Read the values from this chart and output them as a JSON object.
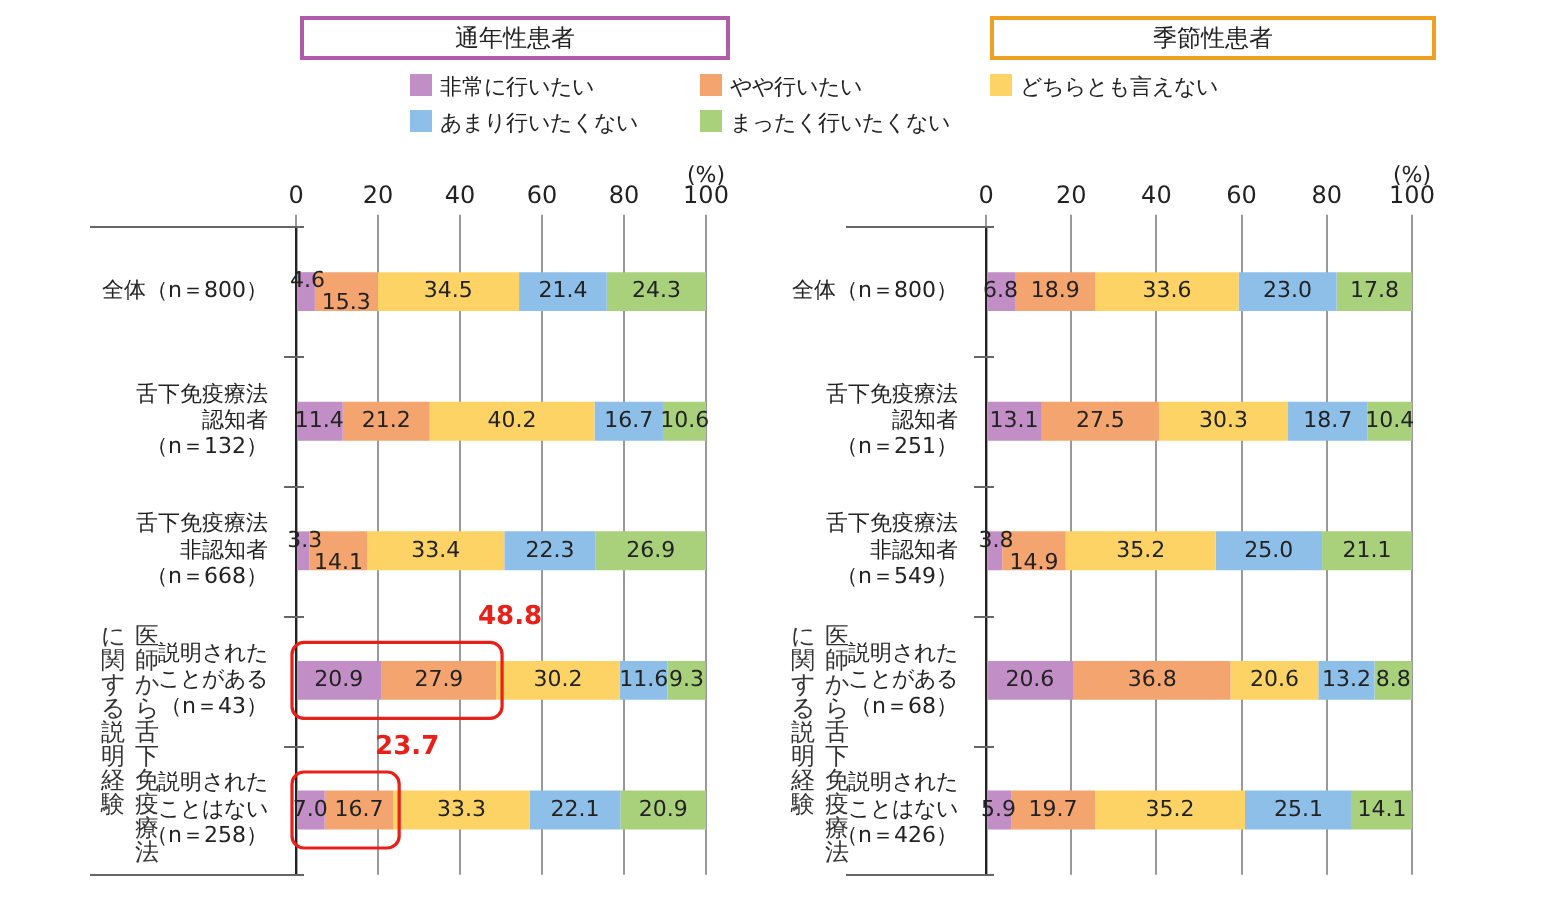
{
  "chart_data": [
    {
      "type": "bar",
      "title": "通年性患者",
      "orientation": "horizontal",
      "stacked": true,
      "xlabel": "(%)",
      "categories": [
        "全体（n＝800）",
        "舌下免疫療法認知者（n＝132）",
        "舌下免疫療法非認知者（n＝668）",
        "説明されたことがある（n＝43）",
        "説明されたことはない（n＝258）"
      ],
      "series": [
        {
          "name": "非常に行いたい",
          "color": "#c28ec6",
          "values": [
            4.6,
            11.4,
            3.3,
            20.9,
            7.0
          ],
          "value_labels": [
            "4.6",
            "11.4",
            "3.3",
            "20.9",
            "7.0"
          ]
        },
        {
          "name": "やや行いたい",
          "color": "#f4a46e",
          "values": [
            15.3,
            21.2,
            14.1,
            27.9,
            16.7
          ],
          "value_labels": [
            "15.3",
            "21.2",
            "14.1",
            "27.9",
            "16.7"
          ]
        },
        {
          "name": "どちらとも言えない",
          "color": "#fdd366",
          "values": [
            34.5,
            40.2,
            33.4,
            30.2,
            33.3
          ],
          "value_labels": [
            "34.5",
            "40.2",
            "33.4",
            "30.2",
            "33.3"
          ]
        },
        {
          "name": "あまり行いたくない",
          "color": "#8ebfe8",
          "values": [
            21.4,
            16.7,
            22.3,
            11.6,
            22.1
          ],
          "value_labels": [
            "21.4",
            "16.7",
            "22.3",
            "11.6",
            "22.1"
          ]
        },
        {
          "name": "まったく行いたくない",
          "color": "#a9d17c",
          "values": [
            24.3,
            10.6,
            26.9,
            9.3,
            20.9
          ],
          "value_labels": [
            "24.3",
            "10.6",
            "26.9",
            "9.3",
            "20.9"
          ]
        }
      ],
      "xlim": [
        0,
        100
      ],
      "xticks": [
        0,
        20,
        40,
        60,
        80,
        100
      ],
      "grid": "x",
      "legend": "top",
      "annotations": [
        "医師から舌下免疫療法に関する説明経験",
        {
          "text": "48.8",
          "x": 48.8,
          "y": "説明されたことがある（n＝43）"
        },
        {
          "text": "23.7",
          "x": 23.7,
          "y": "説明されたことはない（n＝258）"
        }
      ]
    },
    {
      "type": "bar",
      "title": "季節性患者",
      "orientation": "horizontal",
      "stacked": true,
      "xlabel": "(%)",
      "categories": [
        "全体（n＝800）",
        "舌下免疫療法認知者（n＝251）",
        "舌下免疫療法非認知者（n＝549）",
        "説明されたことがある（n＝68）",
        "説明されたことはない（n＝426）"
      ],
      "series": [
        {
          "color": "#c28ec6",
          "values": [
            6.8,
            13.1,
            3.8,
            20.6,
            5.9
          ],
          "value_labels": [
            "6.8",
            "13.1",
            "3.8",
            "20.6",
            "5.9"
          ]
        },
        {
          "color": "#f4a46e",
          "values": [
            18.9,
            27.5,
            14.9,
            36.8,
            19.7
          ],
          "value_labels": [
            "18.9",
            "27.5",
            "14.9",
            "36.8",
            "19.7"
          ]
        },
        {
          "color": "#fdd366",
          "values": [
            33.6,
            30.3,
            35.2,
            20.6,
            35.2
          ],
          "value_labels": [
            "33.6",
            "30.3",
            "35.2",
            "20.6",
            "35.2"
          ]
        },
        {
          "color": "#8ebfe8",
          "values": [
            23.0,
            18.7,
            25.0,
            13.2,
            25.1
          ],
          "value_labels": [
            "23.0",
            "18.7",
            "25.0",
            "13.2",
            "25.1"
          ]
        },
        {
          "color": "#a9d17c",
          "values": [
            17.8,
            10.4,
            21.1,
            8.8,
            14.1
          ],
          "value_labels": [
            "17.8",
            "10.4",
            "21.1",
            "8.8",
            "14.1"
          ]
        }
      ],
      "xlim": [
        0,
        100
      ],
      "xticks": [
        0,
        20,
        40,
        60,
        80,
        100
      ],
      "grid": "x",
      "annotations": [
        "医師から舌下免疫療法に関する説明経験"
      ]
    }
  ]
}
